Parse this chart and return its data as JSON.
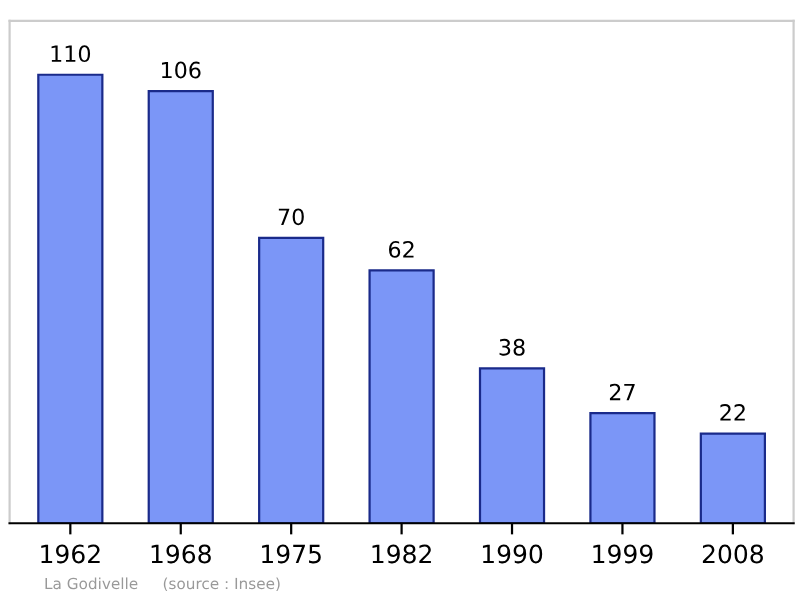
{
  "chart_data": {
    "type": "bar",
    "categories": [
      "1962",
      "1968",
      "1975",
      "1982",
      "1990",
      "1999",
      "2008"
    ],
    "values": [
      110,
      106,
      70,
      62,
      38,
      27,
      22
    ],
    "color": "#7b96f7",
    "data_labels": true,
    "grid": false,
    "annotations": [
      "La Godivelle",
      "(source : Insee)"
    ]
  }
}
